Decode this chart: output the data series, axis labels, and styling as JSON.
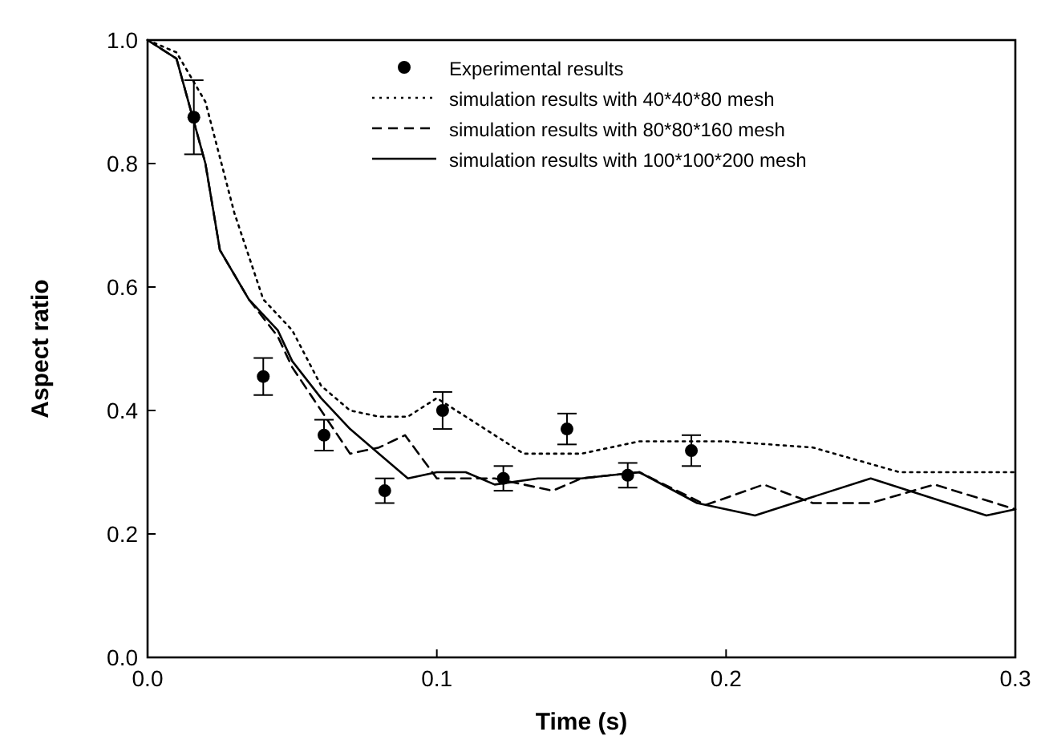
{
  "chart_data": {
    "type": "line",
    "xlabel": "Time (s)",
    "ylabel": "Aspect ratio",
    "xlim": [
      0,
      0.3
    ],
    "ylim": [
      0,
      1
    ],
    "xticks": [
      {
        "value": 0,
        "label": "0.0"
      },
      {
        "value": 0.1,
        "label": "0.1"
      },
      {
        "value": 0.2,
        "label": "0.2"
      },
      {
        "value": 0.3,
        "label": "0.3"
      }
    ],
    "yticks": [
      {
        "value": 0,
        "label": "0.0"
      },
      {
        "value": 0.2,
        "label": "0.2"
      },
      {
        "value": 0.4,
        "label": "0.4"
      },
      {
        "value": 0.6,
        "label": "0.6"
      },
      {
        "value": 0.8,
        "label": "0.8"
      },
      {
        "value": 1,
        "label": "1.0"
      }
    ],
    "grid": false,
    "legend": "top right",
    "series": [
      {
        "name": "Experimental results",
        "type": "scatter",
        "marker": "circle",
        "color": "#000000",
        "x": [
          0.016,
          0.04,
          0.061,
          0.082,
          0.102,
          0.123,
          0.145,
          0.166,
          0.188
        ],
        "values": [
          0.875,
          0.455,
          0.36,
          0.27,
          0.4,
          0.29,
          0.37,
          0.295,
          0.335
        ],
        "errors": [
          0.06,
          0.03,
          0.025,
          0.02,
          0.03,
          0.02,
          0.025,
          0.02,
          0.025
        ]
      },
      {
        "name": "simulation results with 40*40*80 mesh",
        "line_style": "dotted",
        "color": "#000000",
        "x": [
          0,
          0.01,
          0.02,
          0.03,
          0.04,
          0.05,
          0.06,
          0.07,
          0.08,
          0.09,
          0.1,
          0.12,
          0.13,
          0.15,
          0.17,
          0.2,
          0.23,
          0.26,
          0.28,
          0.3
        ],
        "values": [
          1,
          0.98,
          0.9,
          0.72,
          0.58,
          0.53,
          0.44,
          0.4,
          0.39,
          0.39,
          0.42,
          0.36,
          0.33,
          0.33,
          0.35,
          0.35,
          0.34,
          0.3,
          0.3,
          0.3
        ]
      },
      {
        "name": "simulation results with 80*80*160 mesh",
        "line_style": "dashed",
        "color": "#000000",
        "x": [
          0,
          0.01,
          0.02,
          0.025,
          0.035,
          0.045,
          0.05,
          0.06,
          0.07,
          0.08,
          0.089,
          0.1,
          0.12,
          0.14,
          0.15,
          0.17,
          0.193,
          0.213,
          0.23,
          0.25,
          0.272,
          0.3
        ],
        "values": [
          1,
          0.97,
          0.8,
          0.66,
          0.58,
          0.52,
          0.47,
          0.4,
          0.33,
          0.34,
          0.36,
          0.29,
          0.29,
          0.27,
          0.29,
          0.3,
          0.247,
          0.28,
          0.25,
          0.25,
          0.28,
          0.24
        ]
      },
      {
        "name": "simulation results with 100*100*200 mesh",
        "line_style": "solid",
        "color": "#000000",
        "x": [
          0,
          0.01,
          0.02,
          0.025,
          0.035,
          0.045,
          0.05,
          0.06,
          0.07,
          0.08,
          0.09,
          0.1,
          0.11,
          0.12,
          0.135,
          0.15,
          0.17,
          0.19,
          0.21,
          0.25,
          0.29,
          0.3
        ],
        "values": [
          1,
          0.97,
          0.8,
          0.66,
          0.58,
          0.53,
          0.48,
          0.42,
          0.37,
          0.33,
          0.29,
          0.3,
          0.3,
          0.28,
          0.29,
          0.29,
          0.3,
          0.25,
          0.23,
          0.29,
          0.23,
          0.24
        ]
      }
    ]
  }
}
